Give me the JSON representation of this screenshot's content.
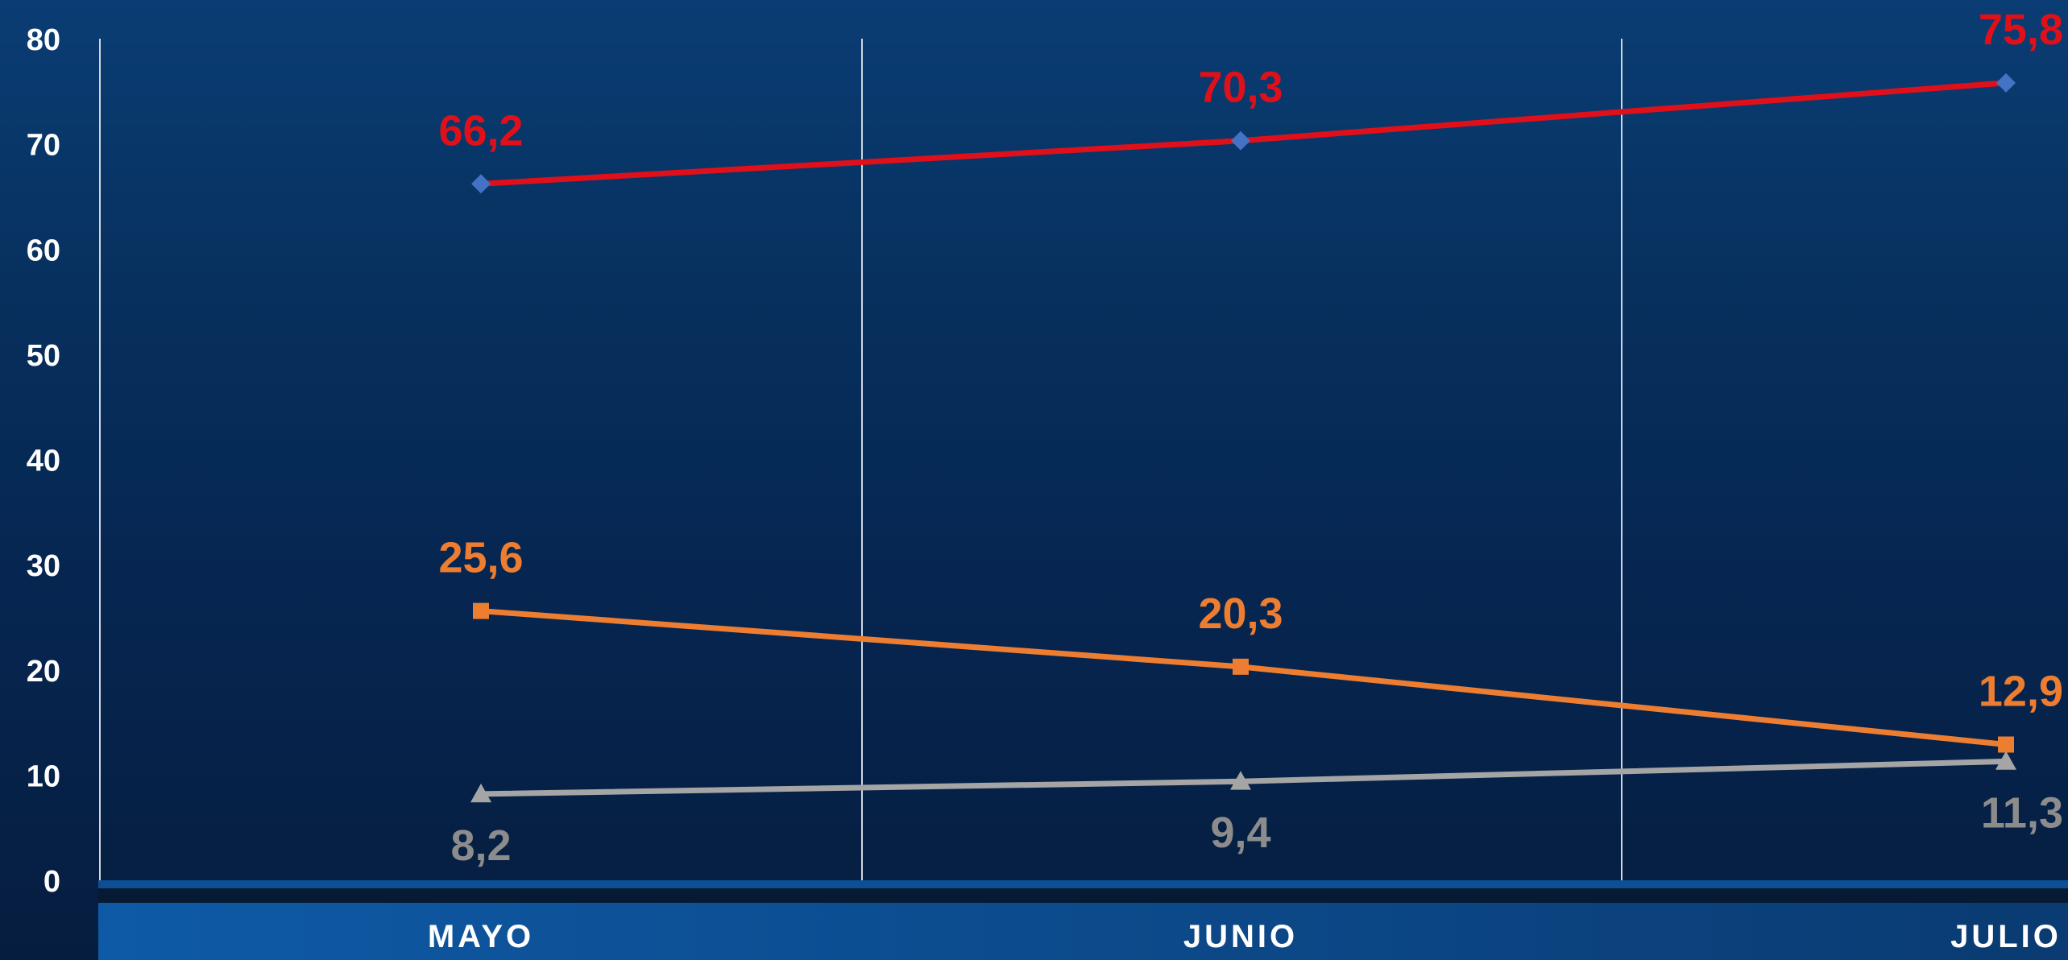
{
  "chart_data": {
    "type": "line",
    "title": "",
    "xlabel": "",
    "ylabel": "",
    "categories": [
      "MAYO",
      "JUNIO",
      "JULIO"
    ],
    "ylim": [
      0,
      80
    ],
    "yticks": [
      "0",
      "10",
      "20",
      "30",
      "40",
      "50",
      "60",
      "70",
      "80"
    ],
    "grid": "vertical",
    "legend": "none",
    "series": [
      {
        "values": [
          66.2,
          70.3,
          75.8
        ],
        "labels": [
          "66,2",
          "70,3",
          "75,8"
        ],
        "line_color": "#e0101a",
        "marker": "diamond",
        "marker_color": "#4472c4",
        "label_color": "#e0101a"
      },
      {
        "values": [
          25.6,
          20.3,
          12.9
        ],
        "labels": [
          "25,6",
          "20,3",
          "12,9"
        ],
        "line_color": "#ed7d31",
        "marker": "square",
        "marker_color": "#ed7d31",
        "label_color": "#ed7d31"
      },
      {
        "values": [
          8.2,
          9.4,
          11.3
        ],
        "labels": [
          "8,2",
          "9,4",
          "11,3"
        ],
        "line_color": "#a5a5a5",
        "marker": "triangle",
        "marker_color": "#a5a5a5",
        "label_color": "#8c8c8c"
      }
    ],
    "colors": {
      "background_top": "#0a3d74",
      "background_bottom": "#061d3f",
      "axis_band_left": "#0e5aa6",
      "axis_band_right": "#0a3b72",
      "gridline": "#d0d6e0",
      "tick_text": "#ffffff"
    }
  }
}
